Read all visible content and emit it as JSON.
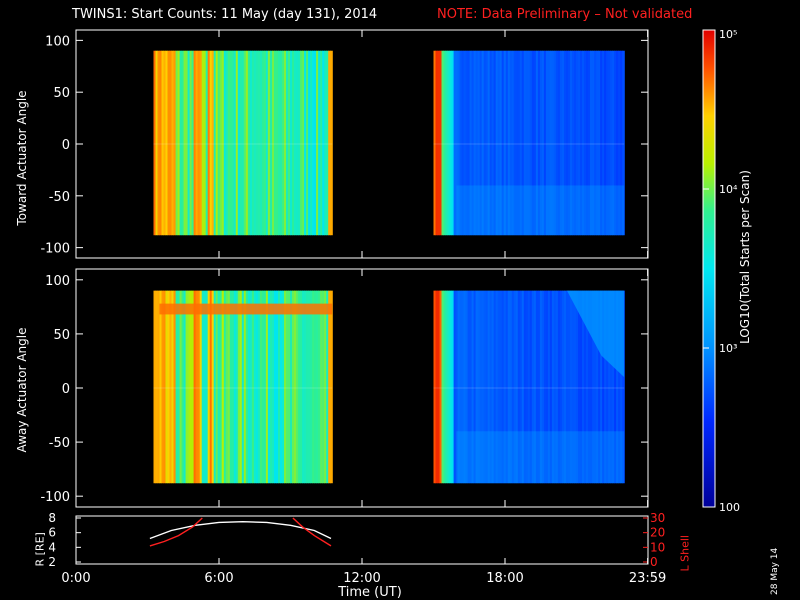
{
  "header": {
    "title": "TWINS1: Start Counts: 11 May (day 131), 2014",
    "note": "NOTE: Data Preliminary – Not validated"
  },
  "stamp": "28 May 14",
  "colorbar": {
    "label": "LOG10(Total Starts per Scan)",
    "ticks": [
      {
        "value": 100,
        "label": "100"
      },
      {
        "value": 1000,
        "label": "10³"
      },
      {
        "value": 10000,
        "label": "10⁴"
      },
      {
        "value": 100000,
        "label": "10⁵"
      }
    ]
  },
  "colors": {
    "note": "#ff2020",
    "r_line": "#ffffff",
    "lshell_line": "#ff2020"
  },
  "chart_data": [
    {
      "type": "heatmap",
      "name": "toward",
      "ylabel": "Toward Actuator Angle",
      "xlim": [
        "0:00",
        "23:59"
      ],
      "ylim": [
        -110,
        110
      ],
      "yticks": [
        100,
        50,
        0,
        -50,
        -100
      ],
      "data_blocks": [
        [
          "3:15",
          "10:45"
        ],
        [
          "15:00",
          "23:00"
        ]
      ],
      "scale": "log",
      "zlim": [
        100,
        100000
      ]
    },
    {
      "type": "heatmap",
      "name": "away",
      "ylabel": "Away Actuator Angle",
      "xlim": [
        "0:00",
        "23:59"
      ],
      "ylim": [
        -110,
        110
      ],
      "yticks": [
        100,
        50,
        0,
        -50,
        -100
      ],
      "data_blocks": [
        [
          "3:15",
          "10:45"
        ],
        [
          "15:00",
          "23:00"
        ]
      ],
      "scale": "log",
      "zlim": [
        100,
        100000
      ]
    },
    {
      "type": "line",
      "name": "orbit",
      "xlabel": "Time (UT)",
      "xticks": [
        "0:00",
        "6:00",
        "12:00",
        "18:00",
        "23:59"
      ],
      "ylabel_left": "R [RE]",
      "ylim_left": [
        2,
        8
      ],
      "yticks_left": [
        2,
        4,
        6,
        8
      ],
      "ylabel_right": "L Shell",
      "ylim_right": [
        0,
        30
      ],
      "yticks_right": [
        0,
        10,
        20,
        30
      ],
      "series": [
        {
          "axis": "left",
          "x": [
            3.1,
            4,
            5,
            6,
            7,
            8,
            9,
            10,
            10.7
          ],
          "values": [
            5.2,
            6.3,
            7.0,
            7.4,
            7.5,
            7.4,
            7.0,
            6.3,
            5.2
          ]
        },
        {
          "axis": "right",
          "x": [
            3.1,
            3.7,
            4.3,
            4.9,
            5.3
          ],
          "values": [
            11,
            14,
            18,
            24,
            30
          ]
        },
        {
          "axis": "right",
          "x": [
            9.1,
            9.5,
            10.0,
            10.4,
            10.7
          ],
          "values": [
            30,
            24,
            18,
            14,
            11
          ]
        }
      ]
    }
  ]
}
